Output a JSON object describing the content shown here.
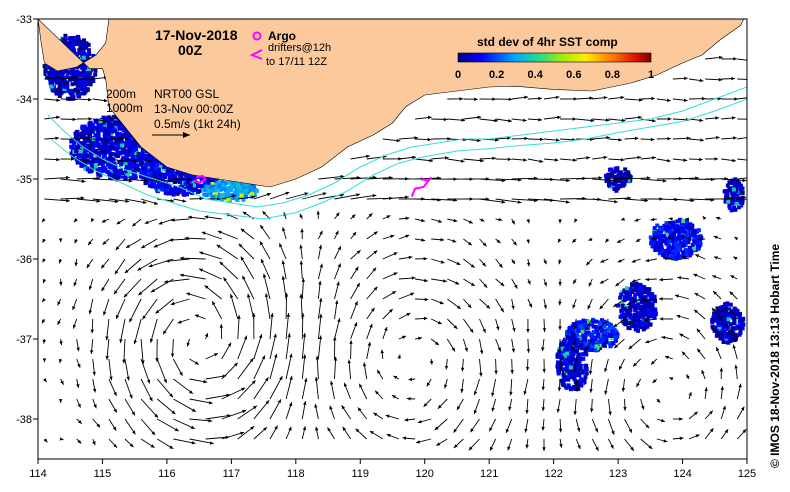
{
  "title": {
    "date": "17-Nov-2018",
    "time": "00Z"
  },
  "legend": {
    "argo_label": "Argo",
    "drifters_line1": "drifters@12h",
    "drifters_line2": "to 17/11 12Z",
    "argo_color": "#ff00ff",
    "drifter_color": "#ff00ff"
  },
  "colorbar": {
    "title": "std dev of 4hr SST comp",
    "ticks": [
      "0",
      "0.2",
      "0.4",
      "0.6",
      "0.8",
      "1"
    ],
    "range": [
      0,
      1
    ]
  },
  "isobaths": {
    "label_200": "200m",
    "label_1000": "1000m",
    "color": "#33dddd"
  },
  "product": {
    "line1": "NRT00 GSL",
    "line2": "13-Nov 00:00Z",
    "scale_label": "0.5m/s (1kt 24h)"
  },
  "credit": "©  IMOS 18-Nov-2018 13:13 Hobart Time",
  "chart_data": {
    "type": "map",
    "xlabel": "",
    "ylabel": "",
    "xlim": [
      114,
      125
    ],
    "ylim": [
      -38.5,
      -33
    ],
    "x_ticks": [
      114,
      115,
      116,
      117,
      118,
      119,
      120,
      121,
      122,
      123,
      124,
      125
    ],
    "y_ticks": [
      -33,
      -34,
      -35,
      -36,
      -37,
      -38
    ],
    "land_color": "#fcc99c",
    "coastline": [
      [
        114.0,
        -33.0
      ],
      [
        114.05,
        -33.3
      ],
      [
        114.1,
        -33.55
      ],
      [
        114.3,
        -33.65
      ],
      [
        114.6,
        -33.6
      ],
      [
        114.9,
        -33.45
      ],
      [
        115.05,
        -33.3
      ],
      [
        115.1,
        -33.0
      ],
      [
        118.5,
        -33.0
      ],
      [
        119.5,
        -33.0
      ],
      [
        120.5,
        -33.0
      ],
      [
        121.5,
        -33.0
      ],
      [
        122.5,
        -33.0
      ],
      [
        123.0,
        -33.0
      ],
      [
        124.0,
        -33.0
      ],
      [
        124.95,
        -33.0
      ],
      [
        124.9,
        -33.08
      ],
      [
        124.6,
        -33.25
      ],
      [
        124.3,
        -33.45
      ],
      [
        124.0,
        -33.55
      ],
      [
        123.6,
        -33.7
      ],
      [
        123.2,
        -33.8
      ],
      [
        122.6,
        -33.9
      ],
      [
        122.0,
        -33.88
      ],
      [
        121.4,
        -33.84
      ],
      [
        121.0,
        -33.85
      ],
      [
        120.5,
        -33.9
      ],
      [
        120.0,
        -33.95
      ],
      [
        119.7,
        -34.1
      ],
      [
        119.5,
        -34.3
      ],
      [
        119.2,
        -34.45
      ],
      [
        118.8,
        -34.6
      ],
      [
        118.4,
        -34.85
      ],
      [
        118.0,
        -35.0
      ],
      [
        117.6,
        -35.1
      ],
      [
        117.2,
        -35.05
      ],
      [
        116.8,
        -35.0
      ],
      [
        116.4,
        -34.95
      ],
      [
        116.0,
        -34.85
      ],
      [
        115.6,
        -34.6
      ],
      [
        115.3,
        -34.3
      ],
      [
        115.1,
        -34.1
      ],
      [
        115.05,
        -33.75
      ],
      [
        115.0,
        -33.62
      ],
      [
        114.8,
        -33.62
      ]
    ],
    "isobath_200": [
      [
        114.15,
        -34.2
      ],
      [
        114.4,
        -34.4
      ],
      [
        114.7,
        -34.6
      ],
      [
        115.0,
        -34.75
      ],
      [
        115.4,
        -34.9
      ],
      [
        115.8,
        -35.0
      ],
      [
        116.2,
        -35.1
      ],
      [
        116.6,
        -35.25
      ],
      [
        117.0,
        -35.3
      ],
      [
        117.4,
        -35.35
      ],
      [
        117.8,
        -35.3
      ],
      [
        118.2,
        -35.2
      ],
      [
        118.6,
        -35.05
      ],
      [
        119.0,
        -34.85
      ],
      [
        119.4,
        -34.7
      ],
      [
        119.8,
        -34.6
      ],
      [
        120.2,
        -34.55
      ],
      [
        120.6,
        -34.5
      ],
      [
        121.0,
        -34.5
      ],
      [
        121.5,
        -34.45
      ],
      [
        122.0,
        -34.4
      ],
      [
        122.5,
        -34.35
      ],
      [
        123.0,
        -34.3
      ],
      [
        123.5,
        -34.25
      ],
      [
        124.0,
        -34.15
      ],
      [
        124.5,
        -34.0
      ],
      [
        125.0,
        -33.85
      ]
    ],
    "isobath_1000": [
      [
        114.2,
        -34.5
      ],
      [
        114.5,
        -34.7
      ],
      [
        114.9,
        -34.9
      ],
      [
        115.3,
        -35.05
      ],
      [
        115.7,
        -35.2
      ],
      [
        116.1,
        -35.3
      ],
      [
        116.5,
        -35.4
      ],
      [
        117.0,
        -35.45
      ],
      [
        117.5,
        -35.5
      ],
      [
        118.0,
        -35.42
      ],
      [
        118.4,
        -35.3
      ],
      [
        118.8,
        -35.15
      ],
      [
        119.2,
        -34.95
      ],
      [
        119.6,
        -34.8
      ],
      [
        120.0,
        -34.72
      ],
      [
        120.5,
        -34.65
      ],
      [
        121.0,
        -34.62
      ],
      [
        121.5,
        -34.58
      ],
      [
        122.0,
        -34.55
      ],
      [
        122.5,
        -34.5
      ],
      [
        123.0,
        -34.42
      ],
      [
        123.5,
        -34.35
      ],
      [
        124.0,
        -34.28
      ],
      [
        124.5,
        -34.15
      ],
      [
        125.0,
        -34.0
      ]
    ],
    "argo_floats": [],
    "drifter_tracks": [
      [
        [
          116.45,
          -34.98
        ],
        [
          116.55,
          -34.96
        ],
        [
          116.6,
          -35.0
        ],
        [
          116.5,
          -35.05
        ],
        [
          116.42,
          -35.02
        ]
      ],
      [
        [
          119.95,
          -35.0
        ],
        [
          120.05,
          -35.02
        ],
        [
          120.1,
          -34.98
        ],
        [
          119.98,
          -35.1
        ],
        [
          119.85,
          -35.12
        ],
        [
          119.8,
          -35.22
        ]
      ]
    ],
    "current_field": {
      "unit": "m/s",
      "scale_ms": 0.5,
      "eddies": [
        {
          "lon": 116.5,
          "lat": -37.0,
          "radius_deg": 1.3,
          "sense": "anticyclonic",
          "strength": 0.6
        },
        {
          "lon": 119.8,
          "lat": -37.3,
          "radius_deg": 1.5,
          "sense": "cyclonic",
          "strength": 0.3
        },
        {
          "lon": 123.8,
          "lat": -37.6,
          "radius_deg": 1.4,
          "sense": "anticyclonic",
          "strength": 0.3
        }
      ],
      "coastal_current": {
        "direction": "eastward",
        "strength": 0.35
      }
    },
    "sst_std_patches": [
      {
        "lon": 115.3,
        "lat": -34.6,
        "rx": 0.8,
        "ry": 0.4,
        "value": 0.08
      },
      {
        "lon": 116.2,
        "lat": -34.95,
        "rx": 0.6,
        "ry": 0.25,
        "value": 0.1
      },
      {
        "lon": 117.0,
        "lat": -35.15,
        "rx": 0.45,
        "ry": 0.12,
        "value": 0.3
      },
      {
        "lon": 114.5,
        "lat": -33.6,
        "rx": 0.4,
        "ry": 0.4,
        "value": 0.06
      },
      {
        "lon": 123.9,
        "lat": -35.75,
        "rx": 0.4,
        "ry": 0.25,
        "value": 0.12
      },
      {
        "lon": 122.6,
        "lat": -36.95,
        "rx": 0.4,
        "ry": 0.2,
        "value": 0.15
      },
      {
        "lon": 122.3,
        "lat": -37.3,
        "rx": 0.25,
        "ry": 0.35,
        "value": 0.08
      },
      {
        "lon": 123.3,
        "lat": -36.6,
        "rx": 0.3,
        "ry": 0.3,
        "value": 0.07
      },
      {
        "lon": 124.7,
        "lat": -36.8,
        "rx": 0.25,
        "ry": 0.25,
        "value": 0.06
      },
      {
        "lon": 123.0,
        "lat": -35.0,
        "rx": 0.2,
        "ry": 0.15,
        "value": 0.06
      },
      {
        "lon": 124.8,
        "lat": -35.2,
        "rx": 0.15,
        "ry": 0.2,
        "value": 0.06
      }
    ]
  }
}
